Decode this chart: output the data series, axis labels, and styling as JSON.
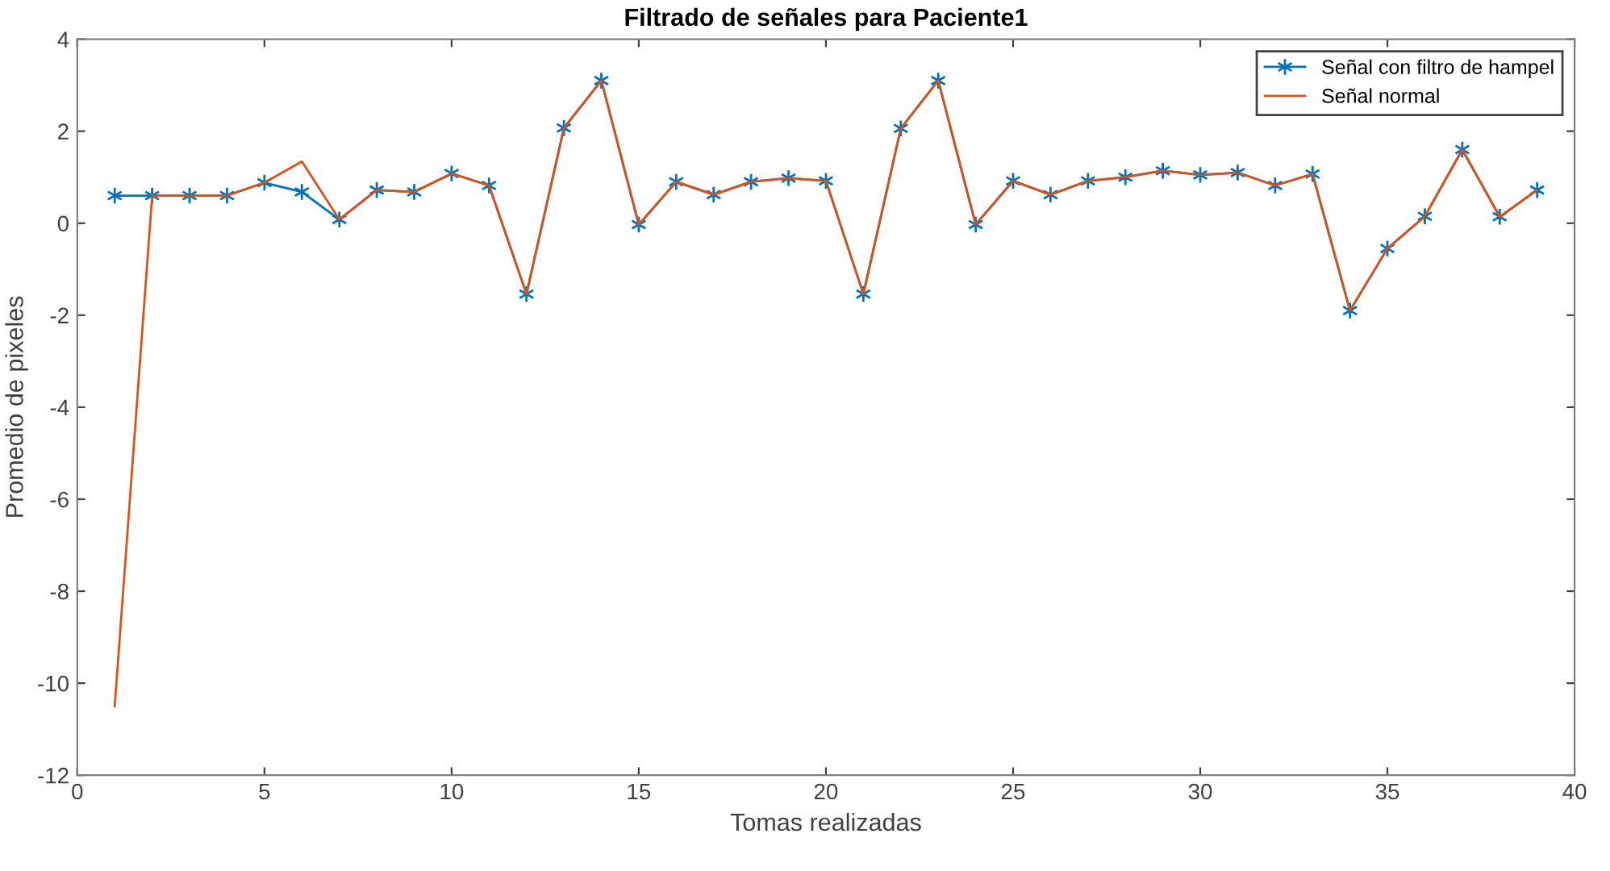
{
  "chart_data": {
    "type": "line",
    "title": "Filtrado de señales para Paciente1",
    "xlabel": "Tomas realizadas",
    "ylabel": "Promedio de pixeles",
    "x": [
      1,
      2,
      3,
      4,
      5,
      6,
      7,
      8,
      9,
      10,
      11,
      12,
      13,
      14,
      15,
      16,
      17,
      18,
      19,
      20,
      21,
      22,
      23,
      24,
      25,
      26,
      27,
      28,
      29,
      30,
      31,
      32,
      33,
      34,
      35,
      36,
      37,
      38,
      39
    ],
    "series": [
      {
        "name": "Señal con filtro de hampel",
        "color": "#0072bd",
        "marker": "cross",
        "values": [
          0.6,
          0.6,
          0.6,
          0.6,
          0.88,
          0.68,
          0.08,
          0.72,
          0.68,
          1.08,
          0.82,
          -1.54,
          2.07,
          3.1,
          -0.03,
          0.9,
          0.62,
          0.9,
          0.98,
          0.92,
          -1.54,
          2.06,
          3.1,
          -0.03,
          0.92,
          0.62,
          0.92,
          1.0,
          1.14,
          1.05,
          1.1,
          0.82,
          1.07,
          -1.9,
          -0.55,
          0.15,
          1.6,
          0.14,
          0.72
        ]
      },
      {
        "name": "Señal normal",
        "color": "#d95319",
        "marker": "none",
        "values": [
          -10.5,
          0.6,
          0.6,
          0.6,
          0.88,
          1.34,
          0.08,
          0.72,
          0.68,
          1.08,
          0.82,
          -1.54,
          2.07,
          3.1,
          -0.03,
          0.9,
          0.62,
          0.9,
          0.98,
          0.92,
          -1.54,
          2.06,
          3.1,
          -0.03,
          0.92,
          0.62,
          0.92,
          1.0,
          1.14,
          1.05,
          1.1,
          0.82,
          1.07,
          -1.9,
          -0.55,
          0.15,
          1.6,
          0.14,
          0.72
        ]
      }
    ],
    "xlim": [
      0,
      40
    ],
    "xticks": [
      0,
      5,
      10,
      15,
      20,
      25,
      30,
      35,
      40
    ],
    "ylim": [
      -12,
      4
    ],
    "yticks": [
      -12,
      -10,
      -8,
      -6,
      -4,
      -2,
      0,
      2,
      4
    ],
    "grid": false,
    "legend": "top right",
    "line_style": "solid"
  }
}
